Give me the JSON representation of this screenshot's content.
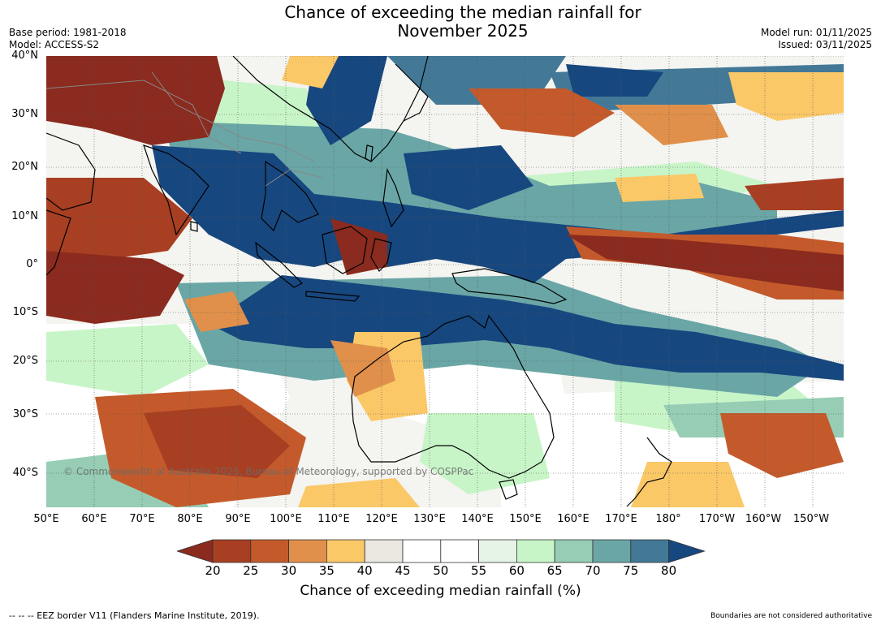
{
  "title_line1": "Chance of exceeding the median rainfall for",
  "title_line2": "November 2025",
  "base_period": "Base period: 1981-2018",
  "model": "Model: ACCESS-S2",
  "model_run": "Model run: 01/11/2025",
  "issued": "Issued: 03/11/2025",
  "credit": "© Commonwealth of Australia 2025, Bureau of Meteorology, supported by COSPPac",
  "lat_labels": [
    "40°N",
    "30°N",
    "20°N",
    "10°N",
    "0°",
    "10°S",
    "20°S",
    "30°S",
    "40°S"
  ],
  "lon_labels": [
    "50°E",
    "60°E",
    "70°E",
    "80°E",
    "90°E",
    "100°E",
    "110°E",
    "120°E",
    "130°E",
    "140°E",
    "150°E",
    "160°E",
    "170°E",
    "180°",
    "170°W",
    "160°W",
    "150°W"
  ],
  "colorbar": {
    "ticks": [
      "20",
      "25",
      "30",
      "35",
      "40",
      "45",
      "50",
      "55",
      "60",
      "65",
      "70",
      "75",
      "80"
    ],
    "colors": [
      "#8b2a1e",
      "#a83f22",
      "#c45a2b",
      "#e0904a",
      "#fbc868",
      "#ebe8e2",
      "#ffffff",
      "#ffffff",
      "#e6f4e8",
      "#c8f5c8",
      "#96cdb4",
      "#6aa6a6",
      "#437997",
      "#17477f"
    ],
    "label": "Chance of exceeding median rainfall (%)"
  },
  "footer_left": "--  --  -- EEZ border V11 (Flanders Marine Institute, 2019).",
  "footer_right": "Boundaries are not considered authoritative"
}
